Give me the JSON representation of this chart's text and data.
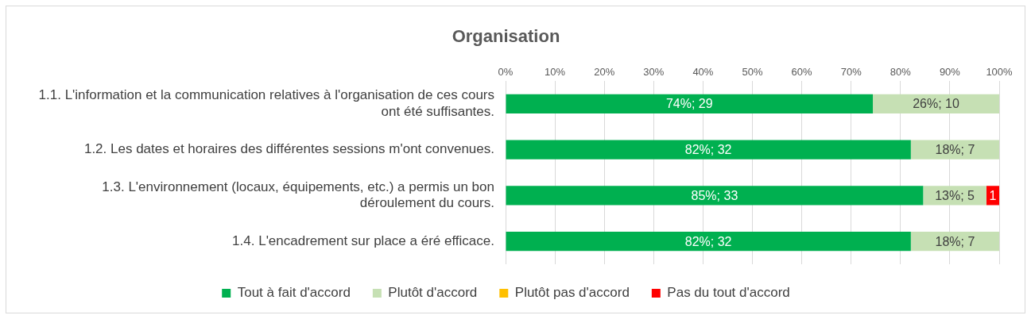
{
  "chart_data": {
    "type": "bar",
    "title": "Organisation",
    "orientation": "horizontal",
    "stacked": true,
    "categories": [
      "1.1. L'information et la communication relatives à l'organisation de ces cours ont été suffisantes.",
      "1.2. Les dates et horaires des différentes sessions m'ont convenues.",
      "1.3. L'environnement (locaux, équipements, etc.) a permis un bon déroulement du cours.",
      "1.4. L'encadrement sur place a éré efficace."
    ],
    "series": [
      {
        "name": "Tout à fait d'accord",
        "color": "#00b050",
        "values": [
          74.4,
          82.1,
          84.6,
          82.1
        ],
        "value_labels": [
          "74%; 29",
          "82%; 32",
          "85%; 33",
          "82%; 32"
        ]
      },
      {
        "name": "Plutôt d'accord",
        "color": "#c6e0b4",
        "values": [
          25.6,
          17.9,
          12.8,
          17.9
        ],
        "value_labels": [
          "26%; 10",
          "18%; 7",
          "13%; 5",
          "18%; 7"
        ]
      },
      {
        "name": "Plutôt pas d'accord",
        "color": "#ffc000",
        "values": [
          null,
          null,
          null,
          null
        ]
      },
      {
        "name": "Pas du tout d'accord",
        "color": "#ff0000",
        "values": [
          null,
          null,
          2.6,
          null
        ]
      }
    ],
    "annotations": [
      {
        "text": "1",
        "x": 100,
        "y": "1.3. L'environnement (locaux, équipements, etc.) a permis un bon déroulement du cours."
      }
    ],
    "xlim": [
      0,
      100
    ],
    "xticks": [
      {
        "value": 0,
        "label": "0%"
      },
      {
        "value": 10,
        "label": "10%"
      },
      {
        "value": 20,
        "label": "20%"
      },
      {
        "value": 30,
        "label": "30%"
      },
      {
        "value": 40,
        "label": "40%"
      },
      {
        "value": 50,
        "label": "50%"
      },
      {
        "value": 60,
        "label": "60%"
      },
      {
        "value": 70,
        "label": "70%"
      },
      {
        "value": 80,
        "label": "80%"
      },
      {
        "value": 90,
        "label": "90%"
      },
      {
        "value": 100,
        "label": "100%"
      }
    ],
    "grid": "x",
    "legend": "bottom"
  }
}
